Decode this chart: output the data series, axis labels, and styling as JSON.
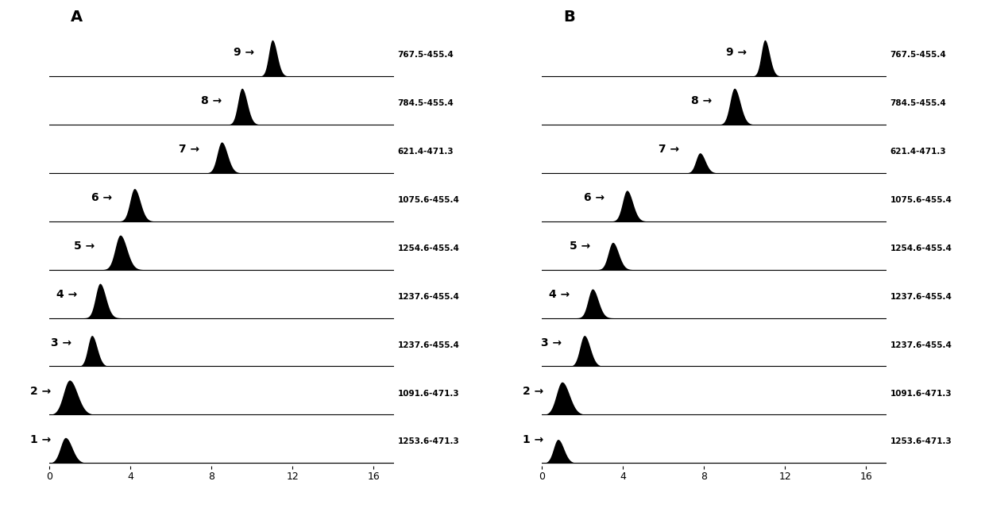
{
  "panels": [
    "A",
    "B"
  ],
  "rows": 9,
  "xlim": [
    0,
    17
  ],
  "xticks": [
    0,
    4,
    8,
    12,
    16
  ],
  "labels": [
    "767.5-455.4",
    "784.5-455.4",
    "621.4-471.3",
    "1075.6-455.4",
    "1254.6-455.4",
    "1237.6-455.4",
    "1237.6-455.4",
    "1091.6-471.3",
    "1253.6-471.3"
  ],
  "peak_centers_A": [
    11.0,
    9.5,
    8.5,
    4.2,
    3.5,
    2.5,
    2.1,
    1.0,
    0.8
  ],
  "peak_widths_A": [
    0.18,
    0.2,
    0.22,
    0.22,
    0.25,
    0.22,
    0.2,
    0.3,
    0.25
  ],
  "peak_heights_A": [
    1.0,
    1.0,
    0.85,
    0.9,
    0.95,
    0.95,
    0.85,
    0.95,
    0.7
  ],
  "peak_centers_B": [
    11.0,
    9.5,
    7.8,
    4.2,
    3.5,
    2.5,
    2.1,
    1.0,
    0.8
  ],
  "peak_widths_B": [
    0.18,
    0.22,
    0.2,
    0.22,
    0.22,
    0.22,
    0.22,
    0.28,
    0.22
  ],
  "peak_heights_B": [
    1.0,
    1.0,
    0.55,
    0.85,
    0.75,
    0.8,
    0.85,
    0.9,
    0.65
  ],
  "background_color": "#ffffff",
  "line_color": "#000000",
  "peak_color": "#000000",
  "label_fontsize": 7.5,
  "number_fontsize": 10,
  "panel_fontsize": 14
}
